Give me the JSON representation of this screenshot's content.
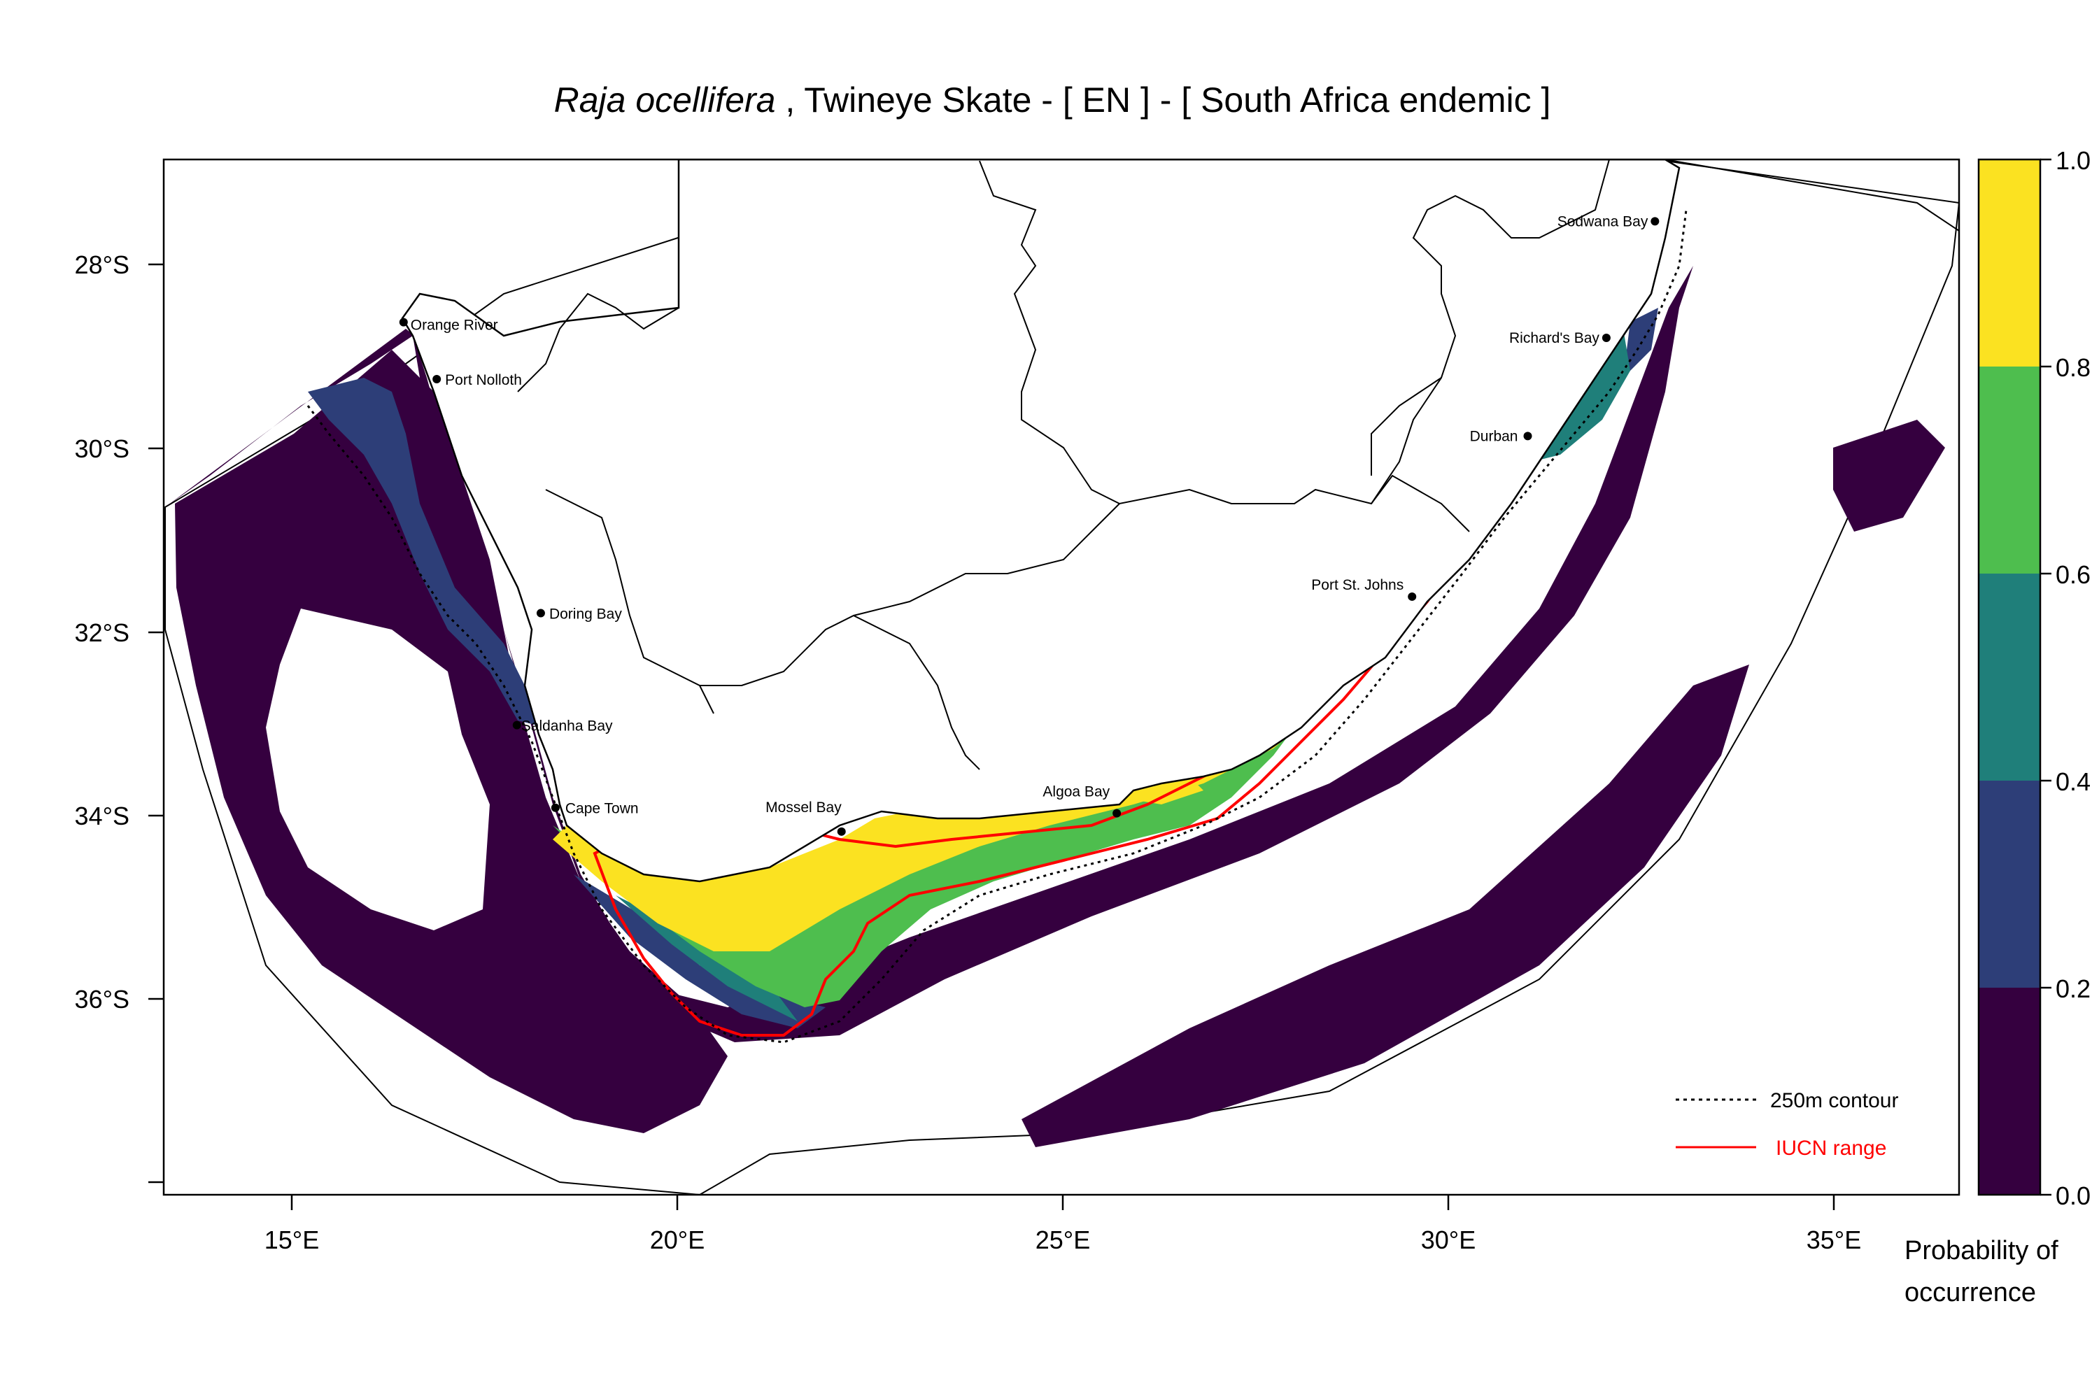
{
  "map": {
    "title_species": "Raja ocellifera",
    "title_rest": " , Twineye Skate  - [ EN ] - [ South Africa endemic ]",
    "x_ticks": [
      "15°E",
      "20°E",
      "25°E",
      "30°E",
      "35°E"
    ],
    "y_ticks": [
      "28°S",
      "30°S",
      "32°S",
      "34°S",
      "36°S"
    ],
    "places": [
      {
        "name": "Orange River",
        "lon": 16.45,
        "lat": -28.63
      },
      {
        "name": "Port Nolloth",
        "lon": 16.88,
        "lat": -29.25
      },
      {
        "name": "Doring Bay",
        "lon": 18.23,
        "lat": -31.8
      },
      {
        "name": "Saldanha Bay",
        "lon": 17.92,
        "lat": -33.02
      },
      {
        "name": "Cape Town",
        "lon": 18.42,
        "lat": -33.92
      },
      {
        "name": "Mossel Bay",
        "lon": 22.13,
        "lat": -34.18
      },
      {
        "name": "Algoa Bay",
        "lon": 25.7,
        "lat": -33.98
      },
      {
        "name": "Port St. Johns",
        "lon": 29.53,
        "lat": -31.62
      },
      {
        "name": "Durban",
        "lon": 31.03,
        "lat": -29.87
      },
      {
        "name": "Richard's Bay",
        "lon": 32.05,
        "lat": -28.8
      },
      {
        "name": "Sodwana Bay",
        "lon": 32.68,
        "lat": -27.53
      }
    ],
    "legend": {
      "contour_label": "250m contour",
      "iucn_label": "IUCN range"
    },
    "colorbar": {
      "ticks": [
        "0.0",
        "0.2",
        "0.4",
        "0.6",
        "0.8",
        "1.0"
      ],
      "bins": [
        {
          "from": 0.0,
          "to": 0.2,
          "color": "#35003f"
        },
        {
          "from": 0.2,
          "to": 0.4,
          "color": "#2d3e78"
        },
        {
          "from": 0.4,
          "to": 0.6,
          "color": "#1f7f7a"
        },
        {
          "from": 0.6,
          "to": 0.8,
          "color": "#4ebe4e"
        },
        {
          "from": 0.8,
          "to": 1.0,
          "color": "#fbe221"
        }
      ],
      "title_line1": "Probability of",
      "title_line2": "occurrence"
    },
    "colors": {
      "iucn_range": "#ff0000",
      "land_border": "#000000"
    }
  }
}
